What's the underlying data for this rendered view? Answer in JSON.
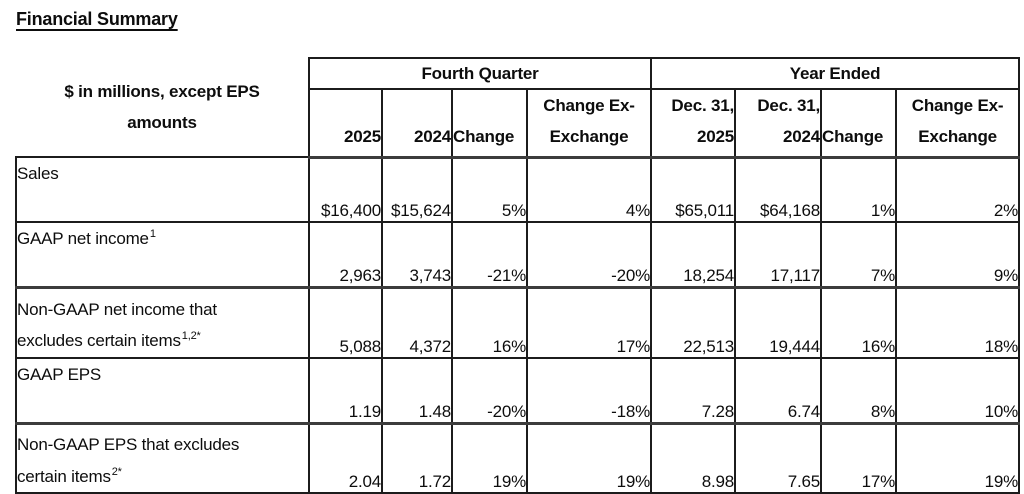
{
  "page": {
    "title": "Financial Summary"
  },
  "table": {
    "stub_header": {
      "line1": "$ in millions, except EPS",
      "line2": "amounts"
    },
    "groups": {
      "fourth_quarter": "Fourth Quarter",
      "year_ended": "Year Ended"
    },
    "columns": [
      {
        "line1": "",
        "line2": "2025"
      },
      {
        "line1": "",
        "line2": "2024"
      },
      {
        "line1": "",
        "line2": "Change"
      },
      {
        "line1": "Change Ex-",
        "line2": "Exchange"
      },
      {
        "line1": "Dec. 31,",
        "line2": "2025"
      },
      {
        "line1": "Dec. 31,",
        "line2": "2024"
      },
      {
        "line1": "",
        "line2": "Change"
      },
      {
        "line1": "Change Ex-",
        "line2": "Exchange"
      }
    ],
    "rows": [
      {
        "line1": "Sales",
        "sup1": "",
        "line2": "",
        "sup2": "",
        "values": [
          "$16,400",
          "$15,624",
          "5%",
          "4%",
          "$65,011",
          "$64,168",
          "1%",
          "2%"
        ]
      },
      {
        "line1": "GAAP net income",
        "sup1": "1",
        "line2": "",
        "sup2": "",
        "values": [
          "2,963",
          "3,743",
          "-21%",
          "-20%",
          "18,254",
          "17,117",
          "7%",
          "9%"
        ]
      },
      {
        "line1": "Non-GAAP net income that",
        "sup1": "",
        "line2": "excludes certain items",
        "sup2": "1,2*",
        "values": [
          "5,088",
          "4,372",
          "16%",
          "17%",
          "22,513",
          "19,444",
          "16%",
          "18%"
        ]
      },
      {
        "line1": "GAAP EPS",
        "sup1": "",
        "line2": "",
        "sup2": "",
        "values": [
          "1.19",
          "1.48",
          "-20%",
          "-18%",
          "7.28",
          "6.74",
          "8%",
          "10%"
        ]
      },
      {
        "line1": "Non-GAAP EPS that excludes",
        "sup1": "",
        "line2": "certain items",
        "sup2": "2*",
        "values": [
          "2.04",
          "1.72",
          "19%",
          "19%",
          "8.98",
          "7.65",
          "17%",
          "19%"
        ]
      }
    ]
  }
}
